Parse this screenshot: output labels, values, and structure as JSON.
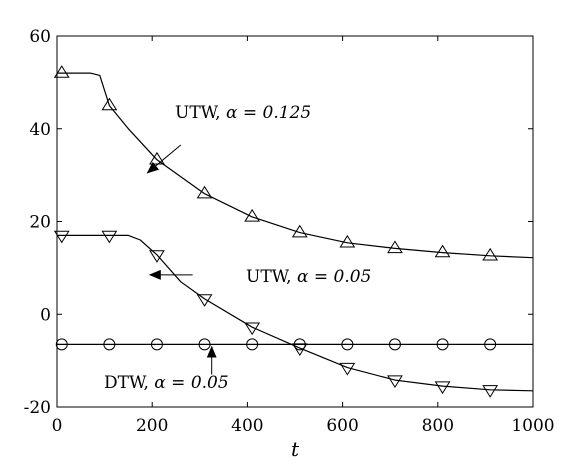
{
  "chart_data": {
    "type": "line",
    "title": "",
    "xlabel": "t",
    "ylabel": "",
    "xlim": [
      0,
      1000
    ],
    "ylim": [
      -20,
      60
    ],
    "xticks": [
      0,
      200,
      400,
      600,
      800,
      1000
    ],
    "yticks": [
      -20,
      0,
      20,
      40,
      60
    ],
    "grid": false,
    "series": [
      {
        "curve": [
          [
            0,
            52
          ],
          [
            70,
            52
          ],
          [
            90,
            51.5
          ],
          [
            110,
            45
          ],
          [
            150,
            40
          ],
          [
            210,
            33.3
          ],
          [
            310,
            26
          ],
          [
            410,
            21
          ],
          [
            510,
            17.6
          ],
          [
            610,
            15.4
          ],
          [
            710,
            14.2
          ],
          [
            810,
            13.3
          ],
          [
            910,
            12.6
          ],
          [
            1000,
            12.2
          ]
        ],
        "markers": [
          [
            10,
            52
          ],
          [
            110,
            45
          ],
          [
            210,
            33.3
          ],
          [
            310,
            26
          ],
          [
            410,
            21
          ],
          [
            510,
            17.6
          ],
          [
            610,
            15.4
          ],
          [
            710,
            14.2
          ],
          [
            810,
            13.3
          ],
          [
            910,
            12.6
          ]
        ],
        "marker": "triangle-up",
        "color": "#000000"
      },
      {
        "curve": [
          [
            0,
            17
          ],
          [
            150,
            17
          ],
          [
            175,
            16
          ],
          [
            210,
            12.8
          ],
          [
            260,
            7
          ],
          [
            310,
            3.3
          ],
          [
            410,
            -2.8
          ],
          [
            510,
            -7.3
          ],
          [
            610,
            -11.5
          ],
          [
            710,
            -14.2
          ],
          [
            810,
            -15.5
          ],
          [
            910,
            -16.3
          ],
          [
            1000,
            -16.5
          ]
        ],
        "markers": [
          [
            10,
            17
          ],
          [
            110,
            17
          ],
          [
            210,
            12.8
          ],
          [
            310,
            3.3
          ],
          [
            410,
            -2.8
          ],
          [
            510,
            -7.3
          ],
          [
            610,
            -11.5
          ],
          [
            710,
            -14.2
          ],
          [
            810,
            -15.5
          ],
          [
            910,
            -16.3
          ]
        ],
        "marker": "triangle-down",
        "color": "#000000"
      },
      {
        "curve": [
          [
            0,
            -6.5
          ],
          [
            1000,
            -6.5
          ]
        ],
        "markers": [
          [
            10,
            -6.5
          ],
          [
            110,
            -6.5
          ],
          [
            210,
            -6.5
          ],
          [
            310,
            -6.5
          ],
          [
            410,
            -6.5
          ],
          [
            510,
            -6.5
          ],
          [
            610,
            -6.5
          ],
          [
            710,
            -6.5
          ],
          [
            810,
            -6.5
          ],
          [
            910,
            -6.5
          ]
        ],
        "marker": "circle",
        "color": "#000000"
      }
    ],
    "annotations": [
      {
        "text": "UTW,",
        "alpha_text": "α = 0.125",
        "arrow_from": [
          260,
          36.5
        ],
        "arrow_to": [
          190,
          30.5
        ]
      },
      {
        "text": "UTW,",
        "alpha_text": "α = 0.05",
        "arrow_from": [
          285,
          8.5
        ],
        "arrow_to": [
          195,
          8.5
        ]
      },
      {
        "text": "DTW,",
        "alpha_text": "α = 0.05",
        "arrow_from": [
          325,
          -13
        ],
        "arrow_to": [
          325,
          -7
        ]
      }
    ]
  }
}
